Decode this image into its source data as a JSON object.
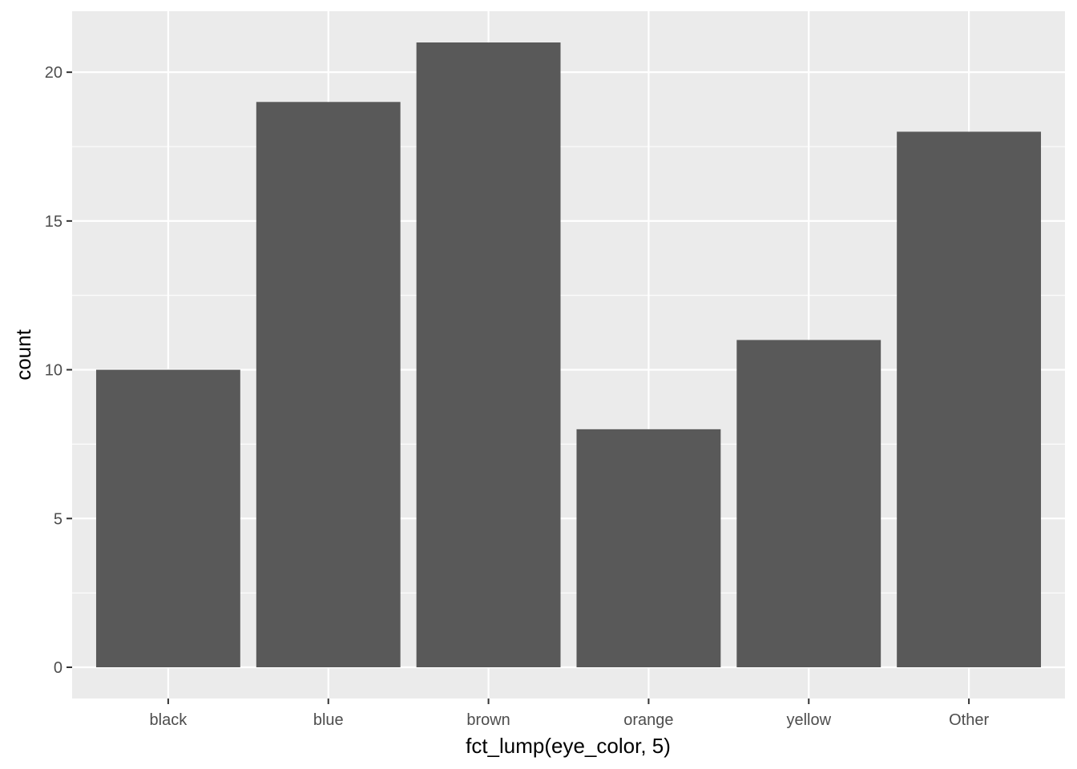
{
  "chart_data": {
    "type": "bar",
    "title": "",
    "xlabel": "fct_lump(eye_color, 5)",
    "ylabel": "count",
    "categories": [
      "black",
      "blue",
      "brown",
      "orange",
      "yellow",
      "Other"
    ],
    "values": [
      10,
      19,
      21,
      8,
      11,
      18
    ],
    "ylim": [
      -1.05,
      22.05
    ],
    "yticks": [
      0,
      5,
      10,
      15,
      20
    ],
    "ytick_labels": [
      "0",
      "5",
      "10",
      "15",
      "20"
    ],
    "grid": true,
    "legend": "none",
    "colors": {
      "panel": "#ebebeb",
      "grid": "#ffffff",
      "bar": "#595959",
      "tick": "#333333",
      "tick_label": "#4d4d4d",
      "axis_title": "#000000"
    }
  }
}
